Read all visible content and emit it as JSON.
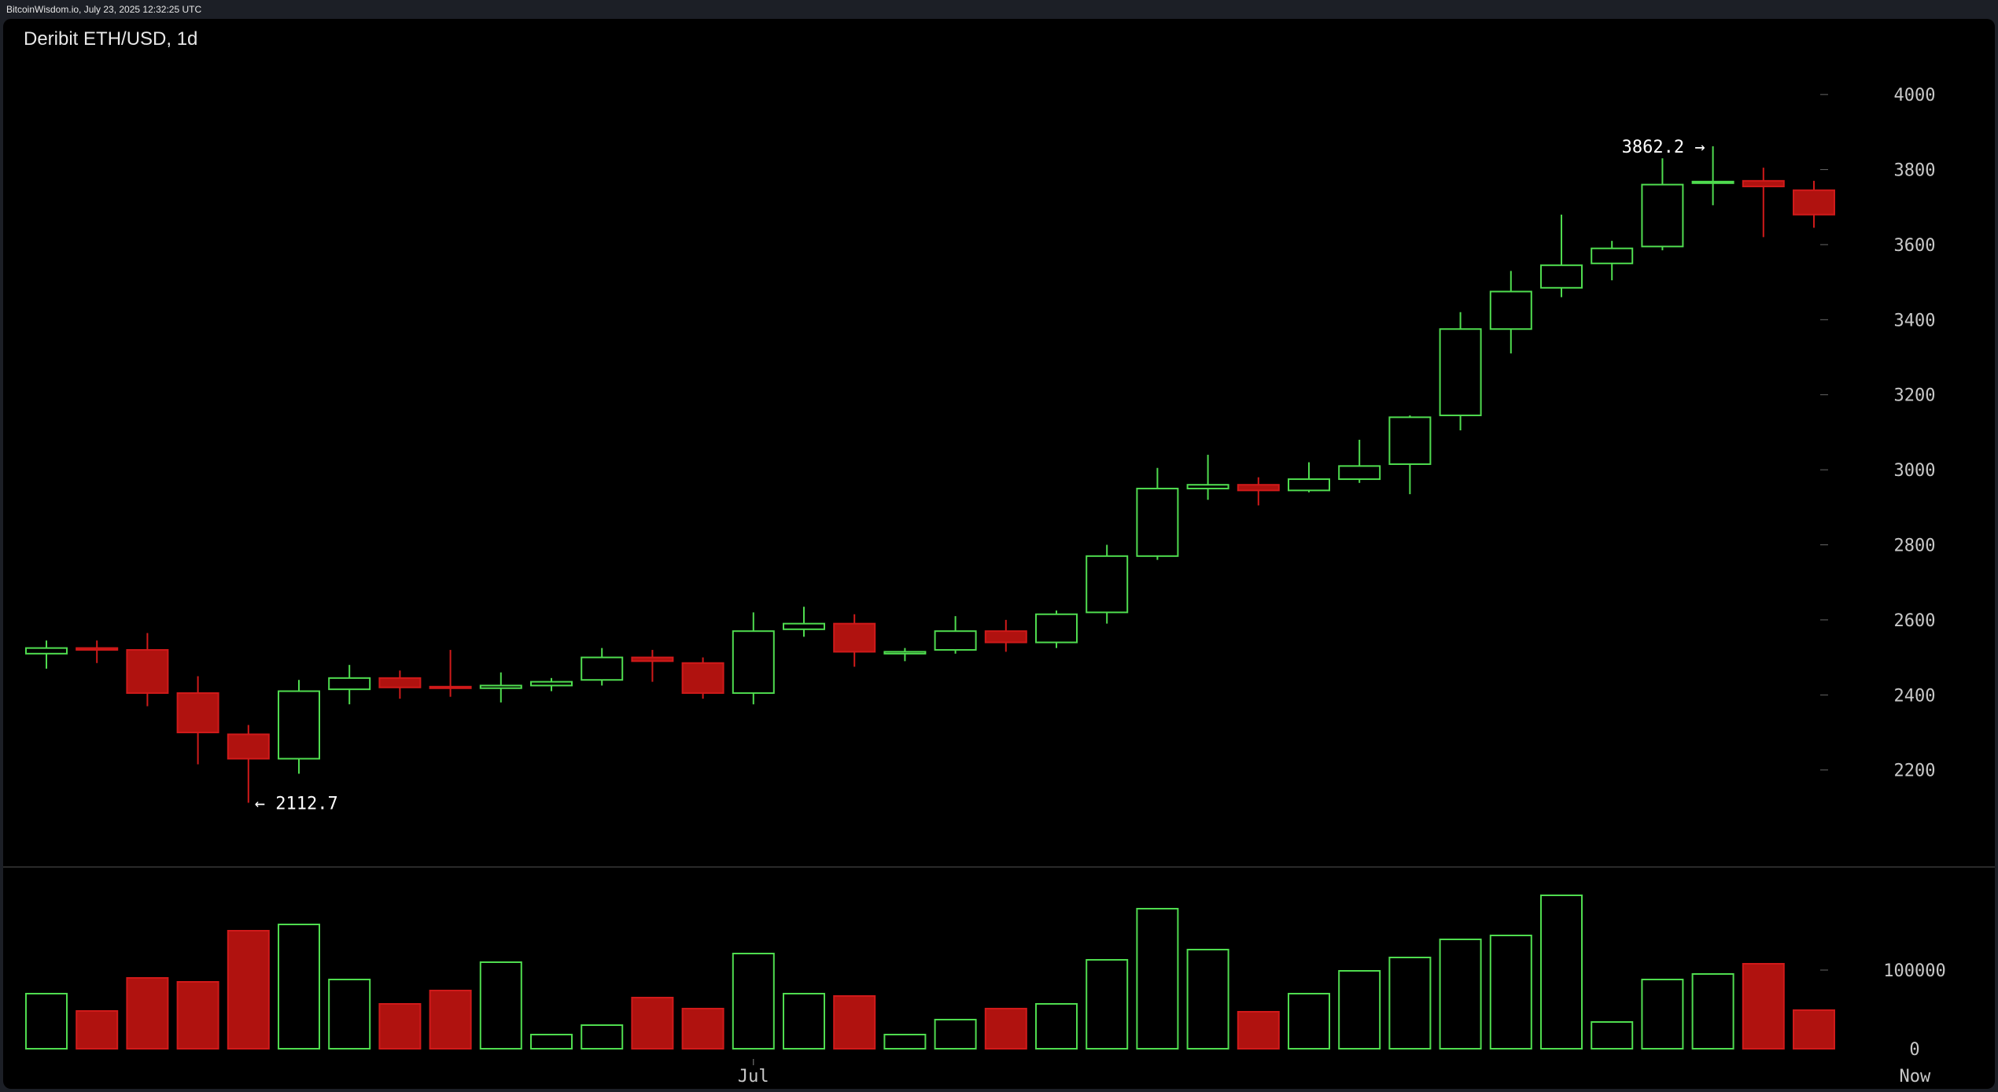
{
  "header": {
    "source_line": "BitcoinWisdom.io, July 23, 2025 12:32:25 UTC",
    "chart_title": "Deribit ETH/USD, 1d"
  },
  "colors": {
    "up": "#4fdc4f",
    "down": "#b0120f",
    "down_stroke": "#d01a1a",
    "grid": "#333333",
    "background": "#000000"
  },
  "chart_data": {
    "type": "candlestick",
    "title": "Deribit ETH/USD, 1d",
    "price_ylim": [
      2040,
      4080
    ],
    "price_ticks": [
      "2200",
      "2400",
      "2600",
      "2800",
      "3000",
      "3200",
      "3400",
      "3600",
      "3800",
      "4000"
    ],
    "volume_ylim": [
      0,
      200000
    ],
    "volume_ticks": [
      "0",
      "100000"
    ],
    "x_labels": [
      {
        "label": "Jul",
        "index": 14
      },
      {
        "label": "Now",
        "index": 37
      }
    ],
    "annotations": [
      {
        "text": "3862.2 →",
        "value": 3862.2,
        "index": 33,
        "side": "left"
      },
      {
        "text": "← 2112.7",
        "value": 2112.7,
        "index": 4,
        "side": "right"
      }
    ],
    "candles": [
      {
        "o": 2510,
        "h": 2545,
        "l": 2470,
        "c": 2525,
        "v": 70000
      },
      {
        "o": 2525,
        "h": 2545,
        "l": 2485,
        "c": 2520,
        "v": 48000
      },
      {
        "o": 2520,
        "h": 2565,
        "l": 2370,
        "c": 2405,
        "v": 90000
      },
      {
        "o": 2405,
        "h": 2450,
        "l": 2215,
        "c": 2300,
        "v": 85000
      },
      {
        "o": 2295,
        "h": 2320,
        "l": 2112.7,
        "c": 2230,
        "v": 150000
      },
      {
        "o": 2230,
        "h": 2440,
        "l": 2190,
        "c": 2410,
        "v": 158000
      },
      {
        "o": 2415,
        "h": 2480,
        "l": 2375,
        "c": 2445,
        "v": 88000
      },
      {
        "o": 2445,
        "h": 2465,
        "l": 2390,
        "c": 2420,
        "v": 57000
      },
      {
        "o": 2422,
        "h": 2520,
        "l": 2395,
        "c": 2418,
        "v": 74000
      },
      {
        "o": 2418,
        "h": 2460,
        "l": 2380,
        "c": 2425,
        "v": 110000
      },
      {
        "o": 2425,
        "h": 2445,
        "l": 2410,
        "c": 2435,
        "v": 18000
      },
      {
        "o": 2440,
        "h": 2525,
        "l": 2425,
        "c": 2500,
        "v": 30000
      },
      {
        "o": 2500,
        "h": 2520,
        "l": 2435,
        "c": 2490,
        "v": 65000
      },
      {
        "o": 2485,
        "h": 2500,
        "l": 2390,
        "c": 2405,
        "v": 51000
      },
      {
        "o": 2405,
        "h": 2620,
        "l": 2375,
        "c": 2570,
        "v": 121000
      },
      {
        "o": 2575,
        "h": 2635,
        "l": 2555,
        "c": 2590,
        "v": 70000
      },
      {
        "o": 2590,
        "h": 2615,
        "l": 2475,
        "c": 2515,
        "v": 67000
      },
      {
        "o": 2510,
        "h": 2525,
        "l": 2490,
        "c": 2515,
        "v": 18000
      },
      {
        "o": 2520,
        "h": 2610,
        "l": 2510,
        "c": 2570,
        "v": 37000
      },
      {
        "o": 2570,
        "h": 2600,
        "l": 2515,
        "c": 2540,
        "v": 51000
      },
      {
        "o": 2540,
        "h": 2625,
        "l": 2525,
        "c": 2615,
        "v": 57000
      },
      {
        "o": 2620,
        "h": 2800,
        "l": 2590,
        "c": 2770,
        "v": 113000
      },
      {
        "o": 2770,
        "h": 3005,
        "l": 2760,
        "c": 2950,
        "v": 178000
      },
      {
        "o": 2950,
        "h": 3040,
        "l": 2920,
        "c": 2960,
        "v": 126000
      },
      {
        "o": 2960,
        "h": 2980,
        "l": 2905,
        "c": 2945,
        "v": 47000
      },
      {
        "o": 2945,
        "h": 3020,
        "l": 2940,
        "c": 2975,
        "v": 70000
      },
      {
        "o": 2975,
        "h": 3080,
        "l": 2965,
        "c": 3010,
        "v": 99000
      },
      {
        "o": 3015,
        "h": 3145,
        "l": 2935,
        "c": 3140,
        "v": 116000
      },
      {
        "o": 3145,
        "h": 3420,
        "l": 3105,
        "c": 3375,
        "v": 139000
      },
      {
        "o": 3375,
        "h": 3530,
        "l": 3310,
        "c": 3475,
        "v": 144000
      },
      {
        "o": 3485,
        "h": 3680,
        "l": 3460,
        "c": 3545,
        "v": 195000
      },
      {
        "o": 3550,
        "h": 3610,
        "l": 3505,
        "c": 3590,
        "v": 34000
      },
      {
        "o": 3595,
        "h": 3830,
        "l": 3585,
        "c": 3760,
        "v": 88000
      },
      {
        "o": 3765,
        "h": 3862.2,
        "l": 3705,
        "c": 3768,
        "v": 95000
      },
      {
        "o": 3770,
        "h": 3805,
        "l": 3620,
        "c": 3755,
        "v": 108000
      },
      {
        "o": 3745,
        "h": 3770,
        "l": 3645,
        "c": 3680,
        "v": 49000
      }
    ]
  }
}
